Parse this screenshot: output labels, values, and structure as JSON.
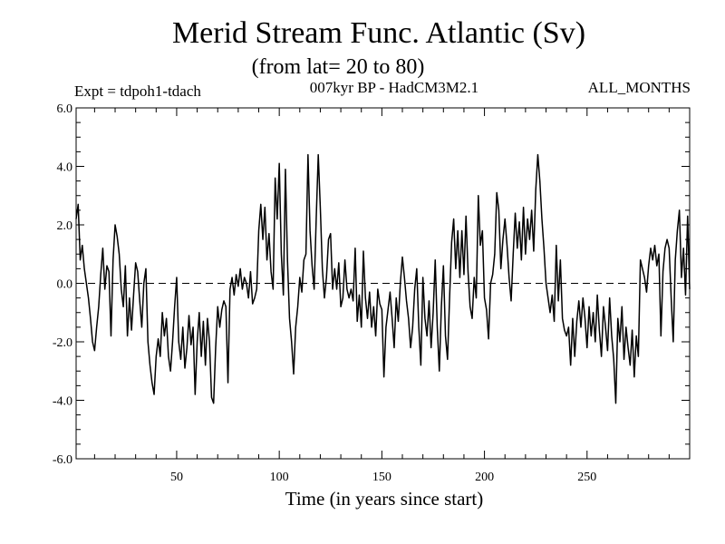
{
  "chart_data": {
    "type": "line",
    "title": "Merid Stream Func. Atlantic (Sv)",
    "subtitle": "(from lat= 20 to 80)",
    "left_label": "Expt = tdpoh1-tdach",
    "center_label": "007kyr BP - HadCM3M2.1",
    "right_label": "ALL_MONTHS",
    "xlabel": "Time (in years since start)",
    "ylabel": "",
    "xlim": [
      1,
      300
    ],
    "ylim": [
      -6,
      6
    ],
    "x_ticks": [
      50,
      100,
      150,
      200,
      250
    ],
    "x_tick_labels": [
      "50",
      "100",
      "150",
      "200",
      "250"
    ],
    "y_ticks": [
      -6,
      -4,
      -2,
      0,
      2,
      4,
      6
    ],
    "y_tick_labels": [
      "-6.0",
      "-4.0",
      "-2.0",
      "0.0",
      "2.0",
      "4.0",
      "6.0"
    ],
    "reference_line": 0,
    "series": [
      {
        "name": "Merid Stream Func. Atlantic",
        "keypoints": [
          [
            1,
            2.2
          ],
          [
            2,
            2.7
          ],
          [
            3,
            0.8
          ],
          [
            4,
            1.3
          ],
          [
            5,
            0.5
          ],
          [
            6,
            0.0
          ],
          [
            7,
            -0.5
          ],
          [
            8,
            -1.2
          ],
          [
            9,
            -2.0
          ],
          [
            10,
            -2.3
          ],
          [
            11,
            -1.5
          ],
          [
            12,
            -0.8
          ],
          [
            13,
            0.3
          ],
          [
            14,
            1.2
          ],
          [
            15,
            -0.2
          ],
          [
            16,
            0.6
          ],
          [
            17,
            0.4
          ],
          [
            18,
            -1.8
          ],
          [
            19,
            0.8
          ],
          [
            20,
            2.0
          ],
          [
            21,
            1.6
          ],
          [
            22,
            1.0
          ],
          [
            23,
            -0.2
          ],
          [
            24,
            -0.8
          ],
          [
            25,
            0.6
          ],
          [
            26,
            -1.8
          ],
          [
            27,
            -0.5
          ],
          [
            28,
            -1.6
          ],
          [
            29,
            -0.4
          ],
          [
            30,
            0.7
          ],
          [
            31,
            0.4
          ],
          [
            32,
            -0.6
          ],
          [
            33,
            -1.5
          ],
          [
            34,
            0.0
          ],
          [
            35,
            0.5
          ],
          [
            36,
            -2.0
          ],
          [
            37,
            -2.8
          ],
          [
            38,
            -3.4
          ],
          [
            39,
            -3.8
          ],
          [
            40,
            -2.5
          ],
          [
            41,
            -1.9
          ],
          [
            42,
            -2.5
          ],
          [
            43,
            -1.0
          ],
          [
            44,
            -1.8
          ],
          [
            45,
            -1.2
          ],
          [
            46,
            -2.5
          ],
          [
            47,
            -3.0
          ],
          [
            48,
            -2.0
          ],
          [
            49,
            -0.8
          ],
          [
            50,
            0.2
          ],
          [
            51,
            -2.0
          ],
          [
            52,
            -2.6
          ],
          [
            53,
            -1.5
          ],
          [
            54,
            -2.9
          ],
          [
            55,
            -2.2
          ],
          [
            56,
            -1.1
          ],
          [
            57,
            -2.1
          ],
          [
            58,
            -1.5
          ],
          [
            59,
            -3.8
          ],
          [
            60,
            -2.0
          ],
          [
            61,
            -1.0
          ],
          [
            62,
            -2.5
          ],
          [
            63,
            -1.3
          ],
          [
            64,
            -2.8
          ],
          [
            65,
            -1.2
          ],
          [
            66,
            -2.0
          ],
          [
            67,
            -3.9
          ],
          [
            68,
            -4.1
          ],
          [
            69,
            -2.2
          ],
          [
            70,
            -0.8
          ],
          [
            71,
            -1.5
          ],
          [
            72,
            -0.9
          ],
          [
            73,
            -0.6
          ],
          [
            74,
            -0.8
          ],
          [
            75,
            -3.4
          ],
          [
            76,
            -0.2
          ],
          [
            77,
            0.2
          ],
          [
            78,
            -0.4
          ],
          [
            79,
            0.3
          ],
          [
            80,
            -0.1
          ],
          [
            81,
            0.5
          ],
          [
            82,
            -0.2
          ],
          [
            83,
            0.2
          ],
          [
            84,
            0.0
          ],
          [
            85,
            -0.5
          ],
          [
            86,
            0.4
          ],
          [
            87,
            -0.7
          ],
          [
            88,
            -0.5
          ],
          [
            89,
            -0.2
          ],
          [
            90,
            1.8
          ],
          [
            91,
            2.7
          ],
          [
            92,
            1.5
          ],
          [
            93,
            2.6
          ],
          [
            94,
            0.8
          ],
          [
            95,
            1.7
          ],
          [
            96,
            0.4
          ],
          [
            97,
            -0.2
          ],
          [
            98,
            3.6
          ],
          [
            99,
            2.2
          ],
          [
            100,
            4.1
          ],
          [
            101,
            1.0
          ],
          [
            102,
            -0.4
          ],
          [
            103,
            3.9
          ],
          [
            104,
            0.8
          ],
          [
            105,
            -1.2
          ],
          [
            106,
            -2.0
          ],
          [
            107,
            -3.1
          ],
          [
            108,
            -1.5
          ],
          [
            109,
            -0.8
          ],
          [
            110,
            0.2
          ],
          [
            111,
            -0.3
          ],
          [
            112,
            0.8
          ],
          [
            113,
            1.0
          ],
          [
            114,
            4.4
          ],
          [
            115,
            1.8
          ],
          [
            116,
            0.6
          ],
          [
            117,
            -0.2
          ],
          [
            118,
            2.2
          ],
          [
            119,
            4.4
          ],
          [
            120,
            2.6
          ],
          [
            121,
            0.5
          ],
          [
            122,
            -0.5
          ],
          [
            123,
            0.2
          ],
          [
            124,
            1.5
          ],
          [
            125,
            1.7
          ],
          [
            126,
            -0.2
          ],
          [
            127,
            0.5
          ],
          [
            128,
            -0.2
          ],
          [
            129,
            0.7
          ],
          [
            130,
            -0.8
          ],
          [
            131,
            -0.5
          ],
          [
            132,
            0.8
          ],
          [
            133,
            -0.2
          ],
          [
            134,
            -0.5
          ],
          [
            135,
            -0.2
          ],
          [
            136,
            -0.6
          ],
          [
            137,
            1.2
          ],
          [
            138,
            -1.3
          ],
          [
            139,
            -0.4
          ],
          [
            140,
            -1.5
          ],
          [
            141,
            1.1
          ],
          [
            142,
            -0.5
          ],
          [
            143,
            -1.2
          ],
          [
            144,
            -0.3
          ],
          [
            145,
            -1.5
          ],
          [
            146,
            -0.8
          ],
          [
            147,
            -1.8
          ],
          [
            148,
            -0.2
          ],
          [
            149,
            -0.7
          ],
          [
            150,
            -0.9
          ],
          [
            151,
            -3.2
          ],
          [
            152,
            -1.5
          ],
          [
            153,
            -0.9
          ],
          [
            154,
            -0.3
          ],
          [
            155,
            -1.2
          ],
          [
            156,
            -2.2
          ],
          [
            157,
            -0.5
          ],
          [
            158,
            -1.3
          ],
          [
            159,
            0.0
          ],
          [
            160,
            0.9
          ],
          [
            161,
            0.2
          ],
          [
            162,
            -0.6
          ],
          [
            163,
            -1.2
          ],
          [
            164,
            -2.2
          ],
          [
            165,
            -1.5
          ],
          [
            166,
            -0.2
          ],
          [
            167,
            0.5
          ],
          [
            168,
            -1.5
          ],
          [
            169,
            -2.8
          ],
          [
            170,
            0.2
          ],
          [
            171,
            -1.2
          ],
          [
            172,
            -1.8
          ],
          [
            173,
            -0.6
          ],
          [
            174,
            -2.2
          ],
          [
            175,
            -1.0
          ],
          [
            176,
            0.8
          ],
          [
            177,
            -1.5
          ],
          [
            178,
            -3.0
          ],
          [
            179,
            -0.8
          ],
          [
            180,
            0.6
          ],
          [
            181,
            -1.8
          ],
          [
            182,
            -2.6
          ],
          [
            183,
            -0.5
          ],
          [
            184,
            1.4
          ],
          [
            185,
            2.2
          ],
          [
            186,
            0.5
          ],
          [
            187,
            1.8
          ],
          [
            188,
            0.2
          ],
          [
            189,
            1.8
          ],
          [
            190,
            0.3
          ],
          [
            191,
            2.3
          ],
          [
            192,
            0.4
          ],
          [
            193,
            -0.8
          ],
          [
            194,
            -1.2
          ],
          [
            195,
            0.2
          ],
          [
            196,
            -0.5
          ],
          [
            197,
            3.0
          ],
          [
            198,
            1.3
          ],
          [
            199,
            1.8
          ],
          [
            200,
            -0.5
          ],
          [
            201,
            -0.9
          ],
          [
            202,
            -1.9
          ],
          [
            203,
            0.0
          ],
          [
            204,
            0.3
          ],
          [
            205,
            1.0
          ],
          [
            206,
            3.1
          ],
          [
            207,
            2.5
          ],
          [
            208,
            0.5
          ],
          [
            209,
            1.5
          ],
          [
            210,
            2.2
          ],
          [
            211,
            1.3
          ],
          [
            212,
            0.2
          ],
          [
            213,
            -0.6
          ],
          [
            214,
            1.0
          ],
          [
            215,
            2.4
          ],
          [
            216,
            1.2
          ],
          [
            217,
            2.1
          ],
          [
            218,
            0.8
          ],
          [
            219,
            2.6
          ],
          [
            220,
            1.0
          ],
          [
            221,
            2.2
          ],
          [
            222,
            1.5
          ],
          [
            223,
            2.5
          ],
          [
            224,
            1.1
          ],
          [
            225,
            3.2
          ],
          [
            226,
            4.4
          ],
          [
            227,
            3.5
          ],
          [
            228,
            2.2
          ],
          [
            229,
            1.2
          ],
          [
            230,
            0.0
          ],
          [
            231,
            -0.5
          ],
          [
            232,
            -1.0
          ],
          [
            233,
            -0.4
          ],
          [
            234,
            -1.3
          ],
          [
            235,
            1.3
          ],
          [
            236,
            -0.6
          ],
          [
            237,
            0.8
          ],
          [
            238,
            -1.2
          ],
          [
            239,
            -1.6
          ],
          [
            240,
            -1.8
          ],
          [
            241,
            -1.5
          ],
          [
            242,
            -2.8
          ],
          [
            243,
            -1.2
          ],
          [
            244,
            -2.5
          ],
          [
            245,
            -1.3
          ],
          [
            246,
            -0.6
          ],
          [
            247,
            -1.5
          ],
          [
            248,
            -0.5
          ],
          [
            249,
            -1.2
          ],
          [
            250,
            -2.2
          ],
          [
            251,
            -0.8
          ],
          [
            252,
            -1.8
          ],
          [
            253,
            -1.0
          ],
          [
            254,
            -2.0
          ],
          [
            255,
            -0.4
          ],
          [
            256,
            -1.6
          ],
          [
            257,
            -2.5
          ],
          [
            258,
            -0.8
          ],
          [
            259,
            -1.5
          ],
          [
            260,
            -2.3
          ],
          [
            261,
            -0.5
          ],
          [
            262,
            -1.8
          ],
          [
            263,
            -2.6
          ],
          [
            264,
            -4.1
          ],
          [
            265,
            -1.2
          ],
          [
            266,
            -2.0
          ],
          [
            267,
            -0.8
          ],
          [
            268,
            -2.6
          ],
          [
            269,
            -1.5
          ],
          [
            270,
            -2.2
          ],
          [
            271,
            -2.8
          ],
          [
            272,
            -1.6
          ],
          [
            273,
            -3.2
          ],
          [
            274,
            -1.8
          ],
          [
            275,
            -2.5
          ],
          [
            276,
            0.8
          ],
          [
            277,
            0.5
          ],
          [
            278,
            0.2
          ],
          [
            279,
            -0.3
          ],
          [
            280,
            0.6
          ],
          [
            281,
            1.2
          ],
          [
            282,
            0.8
          ],
          [
            283,
            1.3
          ],
          [
            284,
            0.6
          ],
          [
            285,
            1.0
          ],
          [
            286,
            -1.8
          ],
          [
            287,
            0.4
          ],
          [
            288,
            1.2
          ],
          [
            289,
            1.5
          ],
          [
            290,
            1.2
          ],
          [
            291,
            -0.5
          ],
          [
            292,
            -2.0
          ],
          [
            293,
            0.8
          ],
          [
            294,
            1.8
          ],
          [
            295,
            2.5
          ],
          [
            296,
            0.2
          ],
          [
            297,
            1.2
          ],
          [
            298,
            -0.4
          ],
          [
            299,
            2.3
          ],
          [
            300,
            -0.2
          ]
        ]
      }
    ]
  }
}
